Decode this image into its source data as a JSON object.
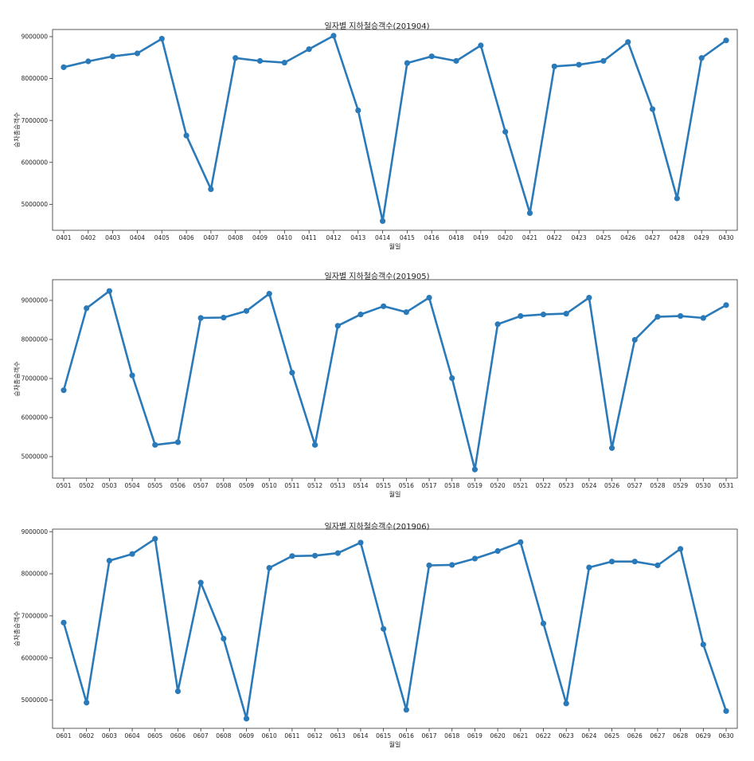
{
  "chart_data": [
    {
      "type": "line",
      "title": "일자별 지하철승객수(201904)",
      "xlabel": "월일",
      "ylabel": "승차총승객수",
      "x": [
        "0401",
        "0402",
        "0403",
        "0404",
        "0405",
        "0406",
        "0407",
        "0408",
        "0409",
        "0410",
        "0411",
        "0412",
        "0413",
        "0414",
        "0415",
        "0416",
        "0418",
        "0419",
        "0420",
        "0421",
        "0422",
        "0423",
        "0425",
        "0426",
        "0427",
        "0428",
        "0429",
        "0430"
      ],
      "values": [
        8270000,
        8410000,
        8530000,
        8600000,
        8950000,
        6640000,
        5360000,
        8490000,
        8420000,
        8380000,
        8700000,
        9020000,
        7240000,
        4600000,
        8370000,
        8530000,
        8420000,
        8790000,
        6730000,
        4790000,
        8290000,
        8330000,
        8420000,
        8870000,
        7270000,
        5140000,
        8490000,
        8910000
      ],
      "yticks": [
        "5000000",
        "6000000",
        "7000000",
        "8000000",
        "9000000"
      ],
      "ylim": [
        4380000,
        9170000
      ],
      "color": "#2a7ab9",
      "grid": false
    },
    {
      "type": "line",
      "title": "일자별 지하철승객수(201905)",
      "xlabel": "월일",
      "ylabel": "승차총승객수",
      "x": [
        "0501",
        "0502",
        "0503",
        "0504",
        "0505",
        "0506",
        "0507",
        "0508",
        "0509",
        "0510",
        "0511",
        "0512",
        "0513",
        "0514",
        "0515",
        "0516",
        "0517",
        "0518",
        "0519",
        "0520",
        "0521",
        "0522",
        "0523",
        "0524",
        "0526",
        "0527",
        "0528",
        "0529",
        "0530",
        "0531"
      ],
      "values": [
        6700000,
        8800000,
        9240000,
        7080000,
        5300000,
        5370000,
        8550000,
        8560000,
        8730000,
        9170000,
        7150000,
        5300000,
        8350000,
        8640000,
        8850000,
        8700000,
        9070000,
        7010000,
        4670000,
        8390000,
        8600000,
        8640000,
        8660000,
        9070000,
        5220000,
        7990000,
        8580000,
        8600000,
        8550000,
        8880000
      ],
      "yticks": [
        "5000000",
        "6000000",
        "7000000",
        "8000000",
        "9000000"
      ],
      "ylim": [
        4450000,
        9530000
      ],
      "color": "#2a7ab9",
      "grid": false
    },
    {
      "type": "line",
      "title": "일자별 지하철승객수(201906)",
      "xlabel": "월일",
      "ylabel": "승차총승객수",
      "x": [
        "0601",
        "0602",
        "0603",
        "0604",
        "0605",
        "0606",
        "0607",
        "0608",
        "0609",
        "0610",
        "0611",
        "0612",
        "0613",
        "0614",
        "0615",
        "0616",
        "0617",
        "0618",
        "0619",
        "0620",
        "0621",
        "0622",
        "0623",
        "0624",
        "0625",
        "0626",
        "0627",
        "0628",
        "0629",
        "0630"
      ],
      "values": [
        6840000,
        4940000,
        8310000,
        8470000,
        8830000,
        5210000,
        7790000,
        6460000,
        4560000,
        8140000,
        8420000,
        8430000,
        8490000,
        8740000,
        6690000,
        4770000,
        8200000,
        8210000,
        8360000,
        8540000,
        8750000,
        6820000,
        4920000,
        8150000,
        8290000,
        8290000,
        8200000,
        8590000,
        6320000,
        4740000
      ],
      "yticks": [
        "5000000",
        "6000000",
        "7000000",
        "8000000",
        "9000000"
      ],
      "ylim": [
        4330000,
        9060000
      ],
      "color": "#2a7ab9",
      "grid": false
    }
  ]
}
